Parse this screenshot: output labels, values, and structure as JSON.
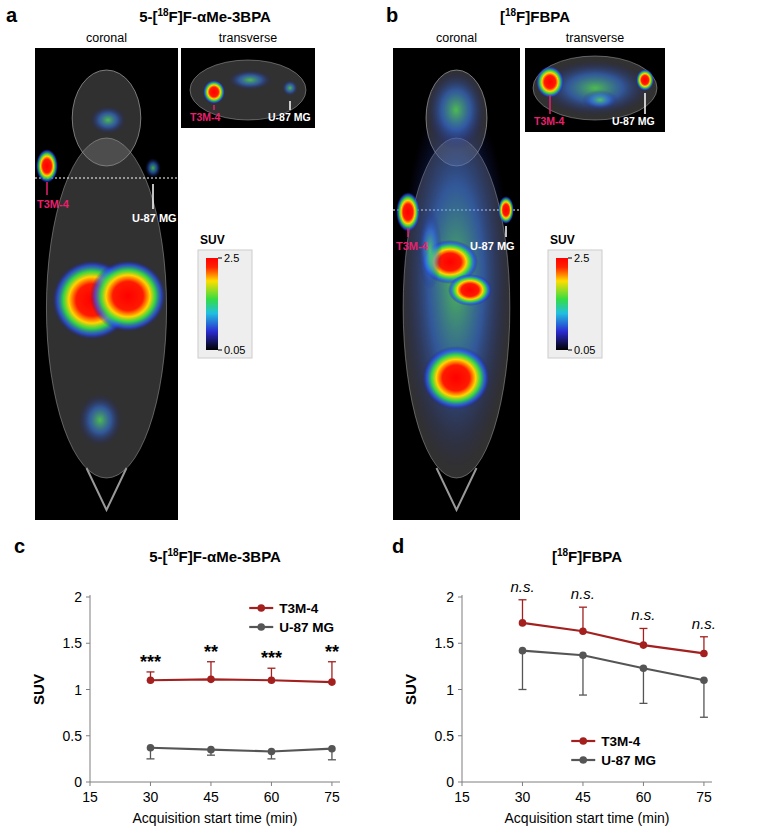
{
  "image_panels": [
    {
      "letter": "a",
      "title": "5-[18F]F-αMe-3BPA",
      "views": [
        "coronal",
        "transverse"
      ],
      "labels": [
        "T3M-4",
        "U-87 MG"
      ],
      "colorbar": {
        "title": "SUV",
        "range": [
          0.05,
          2.5
        ],
        "ticks": [
          0.05,
          2.5
        ]
      }
    },
    {
      "letter": "b",
      "title": "[18F]FBPA",
      "views": [
        "coronal",
        "transverse"
      ],
      "labels": [
        "T3M-4",
        "U-87 MG"
      ],
      "colorbar": {
        "title": "SUV",
        "range": [
          0.05,
          2.5
        ],
        "ticks": [
          0.05,
          2.5
        ]
      }
    }
  ],
  "chart_data": [
    {
      "type": "line",
      "letter": "c",
      "title": "5-[18F]F-αMe-3BPA",
      "x": [
        30,
        45,
        60,
        75
      ],
      "xlim": [
        15,
        77
      ],
      "xticks": [
        15,
        30,
        45,
        60,
        75
      ],
      "ylim": [
        0,
        2
      ],
      "yticks": [
        0,
        0.5,
        1,
        1.5,
        2
      ],
      "xlabel": "Acquisition start time (min)",
      "ylabel": "SUV",
      "grid": false,
      "legend": "upper right",
      "marker": "circle",
      "annotations": [
        "***",
        "**",
        "***",
        "**"
      ],
      "series": [
        {
          "name": "T3M-4",
          "color": "#a3201f",
          "values": [
            1.1,
            1.11,
            1.1,
            1.08
          ],
          "errors": [
            0.09,
            0.19,
            0.13,
            0.22
          ]
        },
        {
          "name": "U-87 MG",
          "color": "#555555",
          "values": [
            0.37,
            0.35,
            0.33,
            0.36
          ],
          "errors": [
            0.12,
            0.06,
            0.08,
            0.12
          ]
        }
      ]
    },
    {
      "type": "line",
      "letter": "d",
      "title": "[18F]FBPA",
      "x": [
        30,
        45,
        60,
        75
      ],
      "xlim": [
        15,
        77
      ],
      "xticks": [
        15,
        30,
        45,
        60,
        75
      ],
      "ylim": [
        0,
        2
      ],
      "yticks": [
        0,
        0.5,
        1,
        1.5,
        2
      ],
      "xlabel": "Acquisition start time (min)",
      "ylabel": "SUV",
      "grid": false,
      "legend": "lower right",
      "marker": "circle",
      "annotations": [
        "n.s.",
        "n.s.",
        "n.s.",
        "n.s."
      ],
      "series": [
        {
          "name": "T3M-4",
          "color": "#a3201f",
          "values": [
            1.72,
            1.63,
            1.48,
            1.39
          ],
          "errors": [
            0.25,
            0.26,
            0.18,
            0.18
          ]
        },
        {
          "name": "U-87 MG",
          "color": "#555555",
          "values": [
            1.42,
            1.37,
            1.23,
            1.1
          ],
          "errors": [
            0.42,
            0.43,
            0.38,
            0.4
          ]
        }
      ]
    }
  ]
}
